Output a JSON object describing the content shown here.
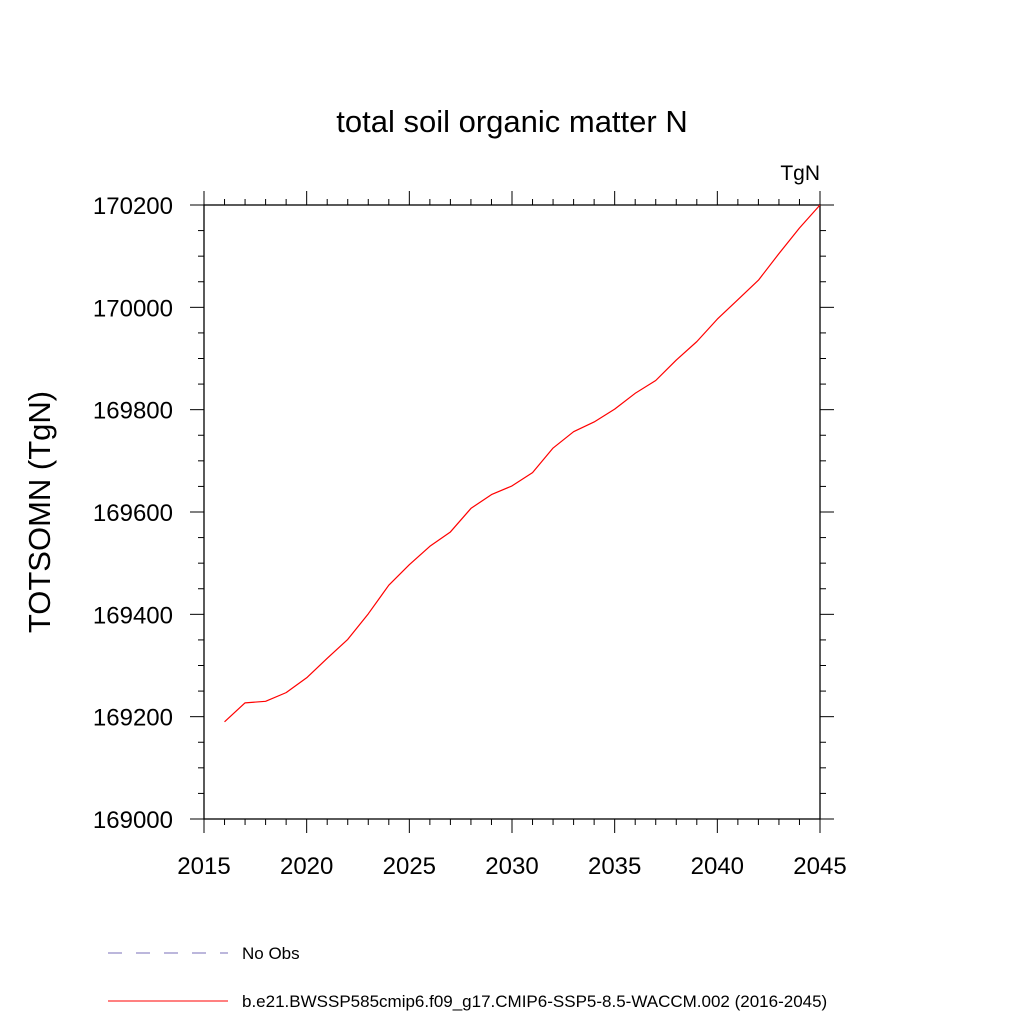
{
  "chart_data": {
    "type": "line",
    "title": "total soil organic matter N",
    "units_label": "TgN",
    "xlabel": "",
    "ylabel": "TOTSOMN  (TgN)",
    "xlim": [
      2015,
      2045
    ],
    "ylim": [
      169000,
      170200
    ],
    "x_ticks": [
      2015,
      2020,
      2025,
      2030,
      2035,
      2040,
      2045
    ],
    "x_minor_step": 1,
    "y_ticks": [
      169000,
      169200,
      169400,
      169600,
      169800,
      170000,
      170200
    ],
    "y_minor_step": 50,
    "series": [
      {
        "name": "b.e21.BWSSP585cmip6.f09_g17.CMIP6-SSP5-8.5-WACCM.002 (2016-2045)",
        "color": "#ff0000",
        "style": "solid",
        "x": [
          2016,
          2017,
          2018,
          2019,
          2020,
          2021,
          2022,
          2023,
          2024,
          2025,
          2026,
          2027,
          2028,
          2029,
          2030,
          2031,
          2032,
          2033,
          2034,
          2035,
          2036,
          2037,
          2038,
          2039,
          2040,
          2041,
          2042,
          2043,
          2044,
          2045
        ],
        "values": [
          169190,
          169227,
          169230,
          169247,
          169276,
          169314,
          169351,
          169401,
          169457,
          169497,
          169533,
          169561,
          169607,
          169634,
          169651,
          169677,
          169725,
          169757,
          169776,
          169801,
          169832,
          169857,
          169897,
          169933,
          169977,
          170015,
          170053,
          170105,
          170155,
          170200
        ]
      }
    ],
    "legend": [
      {
        "label": "No Obs",
        "color": "#7a6fb8",
        "style": "dashed"
      },
      {
        "label": "b.e21.BWSSP585cmip6.f09_g17.CMIP6-SSP5-8.5-WACCM.002 (2016-2045)",
        "color": "#ff0000",
        "style": "solid"
      }
    ]
  }
}
